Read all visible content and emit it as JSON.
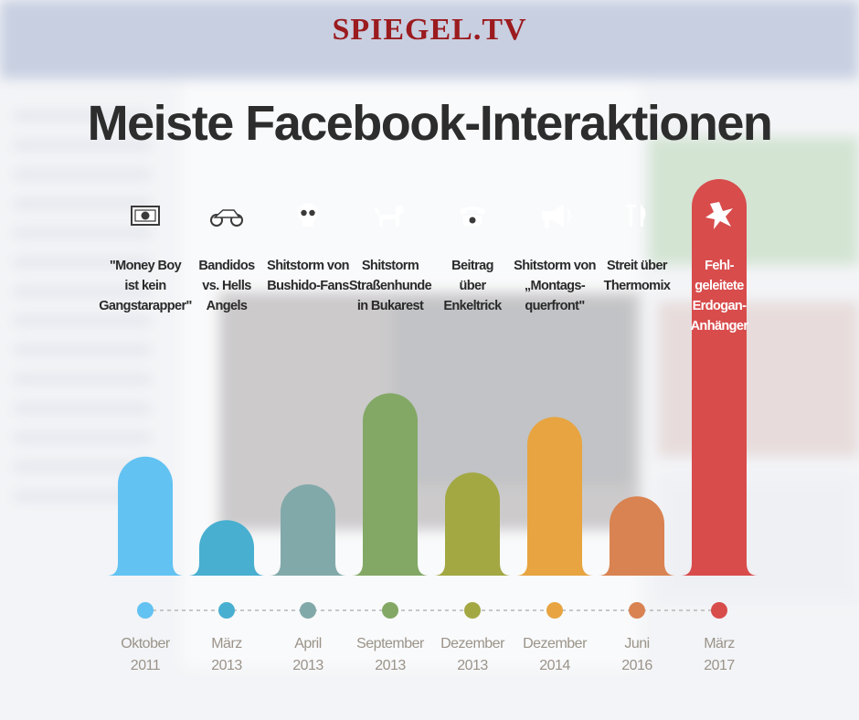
{
  "brand": {
    "logo": "SPIEGEL.TV"
  },
  "chart_data": {
    "type": "bar",
    "title": "Meiste Facebook-Interaktionen",
    "xlabel": "",
    "ylabel": "",
    "ylim": [
      0,
      100
    ],
    "grid": false,
    "legend": "none",
    "categories": [
      {
        "label": [
          "\"Money Boy",
          "ist kein",
          "Gangstarapper\""
        ],
        "date": [
          "Oktober",
          "2011"
        ],
        "icon": "money-icon",
        "color": "#62c2f2"
      },
      {
        "label": [
          "Bandidos",
          "vs. Hells",
          "Angels"
        ],
        "date": [
          "März",
          "2013"
        ],
        "icon": "motorcycle-icon",
        "color": "#48afd0"
      },
      {
        "label": [
          "Shitstorm von",
          "Bushido-Fans"
        ],
        "date": [
          "April",
          "2013"
        ],
        "icon": "skull-icon",
        "color": "#82a9aa"
      },
      {
        "label": [
          "Shitstorm",
          "Straßenhunde",
          "in Bukarest"
        ],
        "date": [
          "September",
          "2013"
        ],
        "icon": "dog-icon",
        "color": "#83a865"
      },
      {
        "label": [
          "Beitrag",
          "über",
          "Enkeltrick"
        ],
        "date": [
          "Dezember",
          "2013"
        ],
        "icon": "telephone-icon",
        "color": "#a3a843"
      },
      {
        "label": [
          "Shitstorm von",
          "„Montags-",
          "querfront\""
        ],
        "date": [
          "Dezember",
          "2014"
        ],
        "icon": "megaphone-icon",
        "color": "#e7a440"
      },
      {
        "label": [
          "Streit über",
          "Thermomix"
        ],
        "date": [
          "Juni",
          "2016"
        ],
        "icon": "cutlery-icon",
        "color": "#d98352"
      },
      {
        "label": [
          "Fehl-",
          "geleitete",
          "Erdogan-",
          "Anhänger"
        ],
        "date": [
          "März",
          "2017"
        ],
        "icon": "explosion-icon",
        "color": "#d84c4c"
      }
    ],
    "values": [
      30,
      14,
      23,
      46,
      26,
      40,
      20,
      100
    ]
  }
}
